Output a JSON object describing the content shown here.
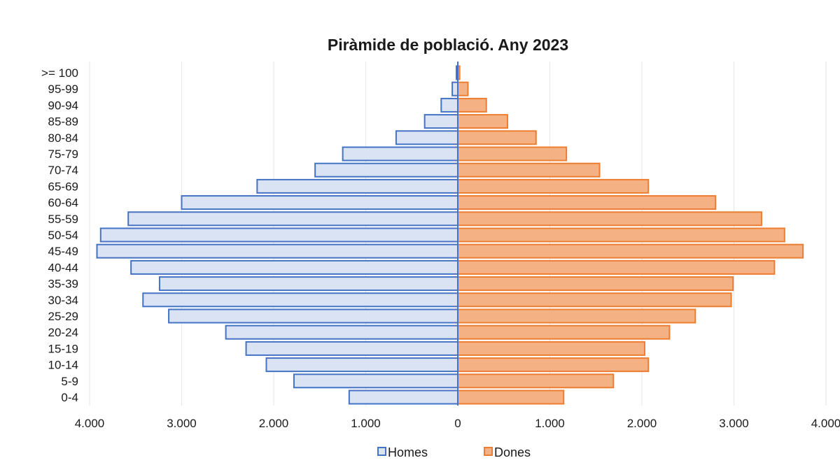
{
  "chart_data": {
    "type": "bar",
    "orientation": "horizontal",
    "title": "Piràmide de població. Any 2023",
    "categories": [
      "0-4",
      "5-9",
      "10-14",
      "15-19",
      "20-24",
      "25-29",
      "30-34",
      "35-39",
      "40-44",
      "45-49",
      "50-54",
      "55-59",
      "60-64",
      "65-69",
      "70-74",
      "75-79",
      "80-84",
      "85-89",
      "90-94",
      "95-99",
      ">= 100"
    ],
    "series": [
      {
        "name": "Homes",
        "color": "#4472c4",
        "fill": "#dae3f3",
        "values": [
          1180,
          1780,
          2080,
          2300,
          2520,
          3140,
          3420,
          3240,
          3550,
          3920,
          3880,
          3580,
          3000,
          2180,
          1550,
          1250,
          670,
          360,
          180,
          60,
          15
        ]
      },
      {
        "name": "Dones",
        "color": "#ed7d31",
        "fill": "#f4b183",
        "values": [
          1150,
          1690,
          2070,
          2030,
          2300,
          2580,
          2970,
          2990,
          3440,
          3750,
          3550,
          3300,
          2800,
          2070,
          1540,
          1180,
          850,
          540,
          310,
          110,
          20
        ]
      }
    ],
    "xlim": [
      -4000,
      4000
    ],
    "x_ticks": [
      -4000,
      -3000,
      -2000,
      -1000,
      0,
      1000,
      2000,
      3000,
      4000
    ],
    "x_tick_labels": [
      "4.000",
      "3.000",
      "2.000",
      "1.000",
      "0",
      "1.000",
      "2.000",
      "3.000",
      "4.000"
    ],
    "grid": "vertical",
    "legend": "bottom"
  }
}
